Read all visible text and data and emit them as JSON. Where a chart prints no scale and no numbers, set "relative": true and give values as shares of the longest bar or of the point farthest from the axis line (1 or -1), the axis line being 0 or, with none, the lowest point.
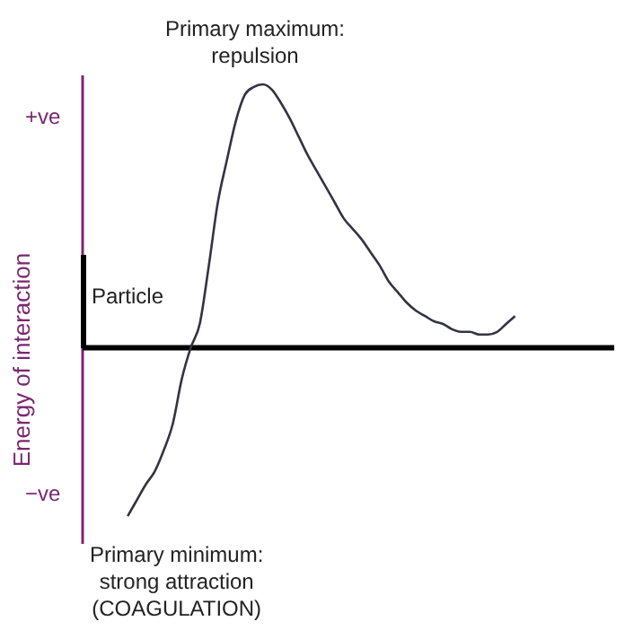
{
  "chart_data": {
    "type": "line",
    "relative": true,
    "ylabel": "Energy of interaction",
    "color": "#333344",
    "marker": "none",
    "line_style": "solid",
    "categories": [
      null,
      null,
      null,
      null,
      null,
      null,
      null,
      null,
      null,
      null,
      null,
      null,
      null,
      null,
      null,
      null,
      null,
      null,
      null,
      null,
      null,
      null,
      null,
      null,
      null,
      null,
      null,
      null,
      null,
      null,
      null,
      null,
      null,
      null,
      null,
      null,
      null,
      null,
      null,
      null,
      null,
      null,
      null,
      null,
      null,
      null,
      null,
      null,
      null,
      null,
      null,
      null,
      null,
      null,
      null,
      null,
      null,
      null,
      null,
      null
    ],
    "values": [
      null,
      null,
      null,
      null,
      null,
      -0.64,
      -0.58,
      -0.52,
      -0.47,
      -0.39,
      -0.29,
      -0.12,
      0.0,
      0.09,
      0.31,
      0.55,
      0.71,
      0.86,
      0.96,
      0.99,
      1,
      0.98,
      0.93,
      0.87,
      0.8,
      0.73,
      0.67,
      0.61,
      0.55,
      0.49,
      0.45,
      0.41,
      0.36,
      0.31,
      0.25,
      0.21,
      0.17,
      0.14,
      0.12,
      0.1,
      0.09,
      0.07,
      0.06,
      0.06,
      0.05,
      0.05,
      0.06,
      0.09,
      0.12,
      null,
      null,
      null,
      null,
      null,
      null,
      null,
      null,
      null,
      null,
      null
    ],
    "annotations": [
      "Primary maximum:\nrepulsion",
      "+ve",
      "Particle",
      "−ve",
      "Primary minimum:\nstrong attraction\n(COAGULATION)"
    ]
  }
}
